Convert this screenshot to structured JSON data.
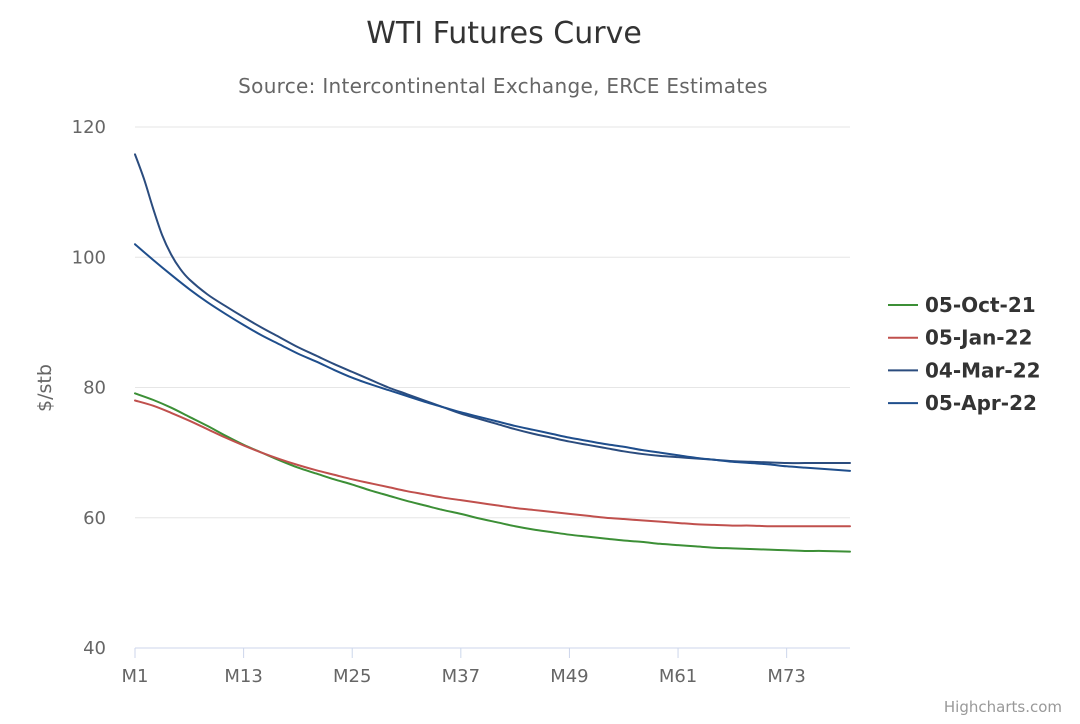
{
  "chart_data": {
    "type": "line",
    "title": "WTI Futures Curve",
    "subtitle": "Source: Intercontinental Exchange, ERCE Estimates",
    "xlabel": "",
    "ylabel": "$/stb",
    "x_tick_labels": [
      "M1",
      "M13",
      "M25",
      "M37",
      "M49",
      "M61",
      "M73"
    ],
    "x_tick_months": [
      1,
      13,
      25,
      37,
      49,
      61,
      73
    ],
    "xlim": [
      1,
      80
    ],
    "ylim": [
      40,
      120
    ],
    "y_ticks": [
      40,
      60,
      80,
      100,
      120
    ],
    "grid": true,
    "legend_position": "right",
    "credits": "Highcharts.com",
    "colors": {
      "grid": "#e6e6e6",
      "axis": "#ccd6eb"
    },
    "series": [
      {
        "name": "05-Oct-21",
        "color": "#3c8f36",
        "x": [
          1,
          3,
          5,
          7,
          9,
          11,
          13,
          15,
          17,
          19,
          21,
          23,
          25,
          27,
          29,
          31,
          33,
          35,
          37,
          39,
          41,
          43,
          45,
          47,
          49,
          51,
          53,
          55,
          57,
          59,
          61,
          63,
          65,
          67,
          69,
          71,
          73,
          75,
          77,
          80
        ],
        "values": [
          79.1,
          78.1,
          76.9,
          75.5,
          74.1,
          72.6,
          71.2,
          70.0,
          68.8,
          67.7,
          66.8,
          65.9,
          65.1,
          64.2,
          63.4,
          62.6,
          61.9,
          61.2,
          60.6,
          59.9,
          59.3,
          58.7,
          58.2,
          57.8,
          57.4,
          57.1,
          56.8,
          56.5,
          56.3,
          56.0,
          55.8,
          55.6,
          55.4,
          55.3,
          55.2,
          55.1,
          55.0,
          54.9,
          54.9,
          54.8
        ]
      },
      {
        "name": "05-Jan-22",
        "color": "#c0504d",
        "x": [
          1,
          3,
          5,
          7,
          9,
          11,
          13,
          15,
          17,
          19,
          21,
          23,
          25,
          27,
          29,
          31,
          33,
          35,
          37,
          39,
          41,
          43,
          45,
          47,
          49,
          51,
          53,
          55,
          57,
          59,
          61,
          63,
          65,
          67,
          69,
          71,
          73,
          75,
          77,
          80
        ],
        "values": [
          78.0,
          77.2,
          76.1,
          74.9,
          73.6,
          72.3,
          71.1,
          70.0,
          69.0,
          68.1,
          67.3,
          66.6,
          65.9,
          65.3,
          64.7,
          64.1,
          63.6,
          63.1,
          62.7,
          62.3,
          61.9,
          61.5,
          61.2,
          60.9,
          60.6,
          60.3,
          60.0,
          59.8,
          59.6,
          59.4,
          59.2,
          59.0,
          58.9,
          58.8,
          58.8,
          58.7,
          58.7,
          58.7,
          58.7,
          58.7
        ]
      },
      {
        "name": "04-Mar-22",
        "color": "#2b4c7e",
        "x": [
          1,
          2,
          3,
          4,
          5,
          6,
          7,
          9,
          11,
          13,
          15,
          17,
          19,
          21,
          23,
          25,
          27,
          29,
          31,
          33,
          35,
          37,
          39,
          41,
          43,
          45,
          47,
          49,
          51,
          53,
          55,
          57,
          59,
          61,
          63,
          65,
          67,
          69,
          71,
          73,
          75,
          77,
          80
        ],
        "values": [
          115.8,
          112.0,
          107.5,
          103.4,
          100.4,
          98.2,
          96.6,
          94.3,
          92.5,
          90.8,
          89.2,
          87.7,
          86.2,
          84.9,
          83.6,
          82.4,
          81.2,
          80.0,
          79.0,
          78.0,
          77.0,
          76.0,
          75.2,
          74.4,
          73.6,
          72.9,
          72.3,
          71.7,
          71.2,
          70.7,
          70.2,
          69.8,
          69.5,
          69.3,
          69.1,
          68.9,
          68.7,
          68.6,
          68.5,
          68.4,
          68.4,
          68.4,
          68.4
        ]
      },
      {
        "name": "05-Apr-22",
        "color": "#1f4e8c",
        "x": [
          1,
          3,
          5,
          7,
          9,
          11,
          13,
          15,
          17,
          19,
          21,
          23,
          25,
          27,
          29,
          31,
          33,
          35,
          37,
          39,
          41,
          43,
          45,
          47,
          49,
          51,
          53,
          55,
          57,
          59,
          61,
          63,
          65,
          67,
          69,
          71,
          73,
          75,
          77,
          80
        ],
        "values": [
          102.0,
          99.6,
          97.3,
          95.1,
          93.1,
          91.3,
          89.6,
          88.0,
          86.6,
          85.2,
          84.0,
          82.7,
          81.5,
          80.5,
          79.6,
          78.7,
          77.8,
          77.0,
          76.2,
          75.5,
          74.8,
          74.1,
          73.5,
          72.9,
          72.3,
          71.8,
          71.3,
          70.9,
          70.4,
          70.0,
          69.6,
          69.2,
          68.9,
          68.6,
          68.4,
          68.2,
          67.9,
          67.7,
          67.5,
          67.2
        ]
      }
    ]
  }
}
